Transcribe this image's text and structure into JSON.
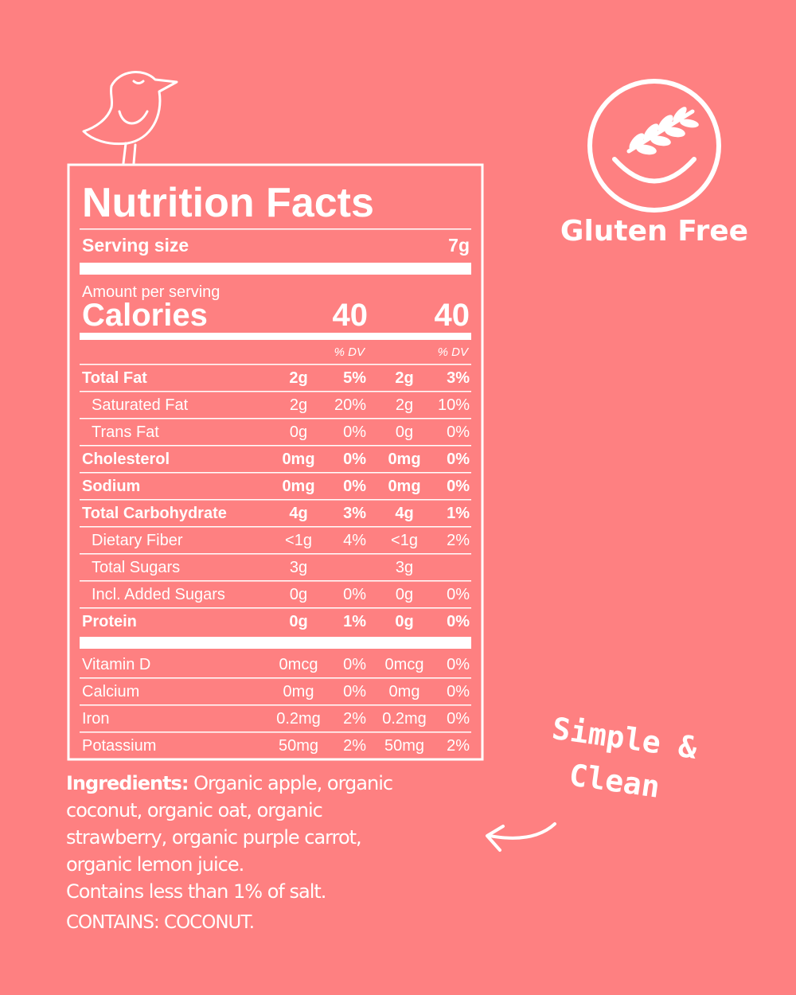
{
  "header": {
    "title": "Nutrition Facts"
  },
  "serving_size": {
    "label": "Serving size",
    "value": "7g"
  },
  "amount_per_serving": "Amount per serving",
  "calories": {
    "label": "Calories",
    "values": [
      "40",
      "40"
    ]
  },
  "dv_headers": [
    "% DV",
    "% DV"
  ],
  "rows": [
    {
      "label": "Total Fat",
      "bold": true,
      "indent": false,
      "cells": [
        "2g",
        "5%",
        "2g",
        "3%"
      ]
    },
    {
      "label": "Saturated Fat",
      "bold": false,
      "indent": true,
      "cells": [
        "2g",
        "20%",
        "2g",
        "10%"
      ]
    },
    {
      "label": "Trans Fat",
      "bold": false,
      "indent": true,
      "cells": [
        "0g",
        "0%",
        "0g",
        "0%"
      ]
    },
    {
      "label": "Cholesterol",
      "bold": true,
      "indent": false,
      "cells": [
        "0mg",
        "0%",
        "0mg",
        "0%"
      ]
    },
    {
      "label": "Sodium",
      "bold": true,
      "indent": false,
      "cells": [
        "0mg",
        "0%",
        "0mg",
        "0%"
      ]
    },
    {
      "label": "Total Carbohydrate",
      "bold": true,
      "indent": false,
      "cells": [
        "4g",
        "3%",
        "4g",
        "1%"
      ]
    },
    {
      "label": "Dietary Fiber",
      "bold": false,
      "indent": true,
      "cells": [
        "<1g",
        "4%",
        "<1g",
        "2%"
      ]
    },
    {
      "label": "Total Sugars",
      "bold": false,
      "indent": true,
      "cells": [
        "3g",
        null,
        "3g",
        null
      ]
    },
    {
      "label": "Incl. Added Sugars",
      "bold": false,
      "indent": true,
      "cells": [
        "0g",
        "0%",
        "0g",
        "0%"
      ]
    },
    {
      "label": "Protein",
      "bold": true,
      "indent": false,
      "cells": [
        "0g",
        "1%",
        "0g",
        "0%"
      ]
    }
  ],
  "vitamins": [
    {
      "label": "Vitamin D",
      "cells": [
        "0mcg",
        "0%",
        "0mcg",
        "0%"
      ]
    },
    {
      "label": "Calcium",
      "cells": [
        "0mg",
        "0%",
        "0mg",
        "0%"
      ]
    },
    {
      "label": "Iron",
      "cells": [
        "0.2mg",
        "2%",
        "0.2mg",
        "0%"
      ]
    },
    {
      "label": "Potassium",
      "cells": [
        "50mg",
        "2%",
        "50mg",
        "2%"
      ]
    }
  ],
  "ingredients": {
    "label": "Ingredients:",
    "lines": [
      " Organic apple, organic",
      "coconut, organic oat, organic",
      "strawberry, organic purple carrot,",
      "organic lemon juice.",
      "Contains less than 1% of salt."
    ]
  },
  "contains": "CONTAINS: COCONUT.",
  "badge": "Gluten Free",
  "callout": [
    "Simple &",
    "Clean"
  ]
}
